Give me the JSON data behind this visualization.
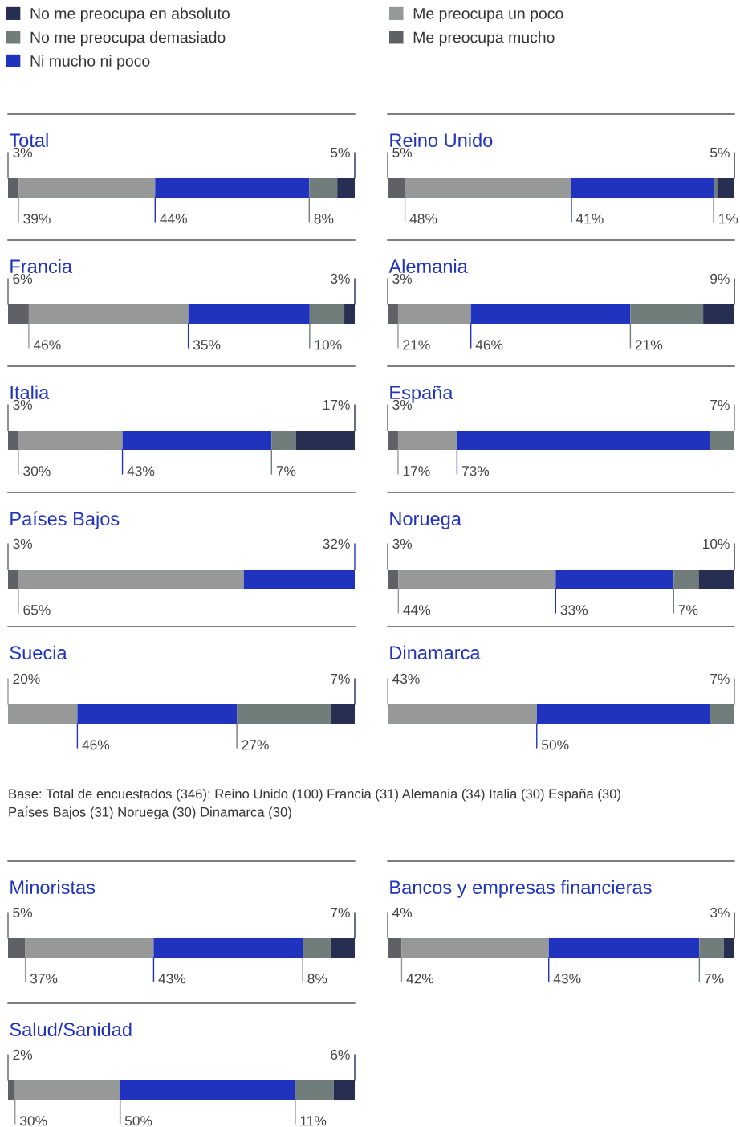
{
  "chart_data": [
    {
      "type": "bar",
      "orientation": "horizontal",
      "stacked": true,
      "legend": "top",
      "title": "Total",
      "categories": [
        null
      ],
      "series": [
        {
          "name": "Me preocupa mucho",
          "color": "#606167",
          "values": [
            3
          ],
          "value_labels": [
            "3%"
          ]
        },
        {
          "name": "Me preocupa un poco",
          "color": "#979998",
          "values": [
            39
          ],
          "value_labels": [
            "39%"
          ]
        },
        {
          "name": "Ni mucho ni poco",
          "color": "#2033be",
          "values": [
            44
          ],
          "value_labels": [
            "44%"
          ]
        },
        {
          "name": "No me preocupa demasiado",
          "color": "#717d7a",
          "values": [
            8
          ],
          "value_labels": [
            "8%"
          ]
        },
        {
          "name": "No me preocupa en absoluto",
          "color": "#262e52",
          "values": [
            5
          ],
          "value_labels": [
            "5%"
          ]
        }
      ]
    },
    {
      "type": "bar",
      "orientation": "horizontal",
      "stacked": true,
      "title": "Reino Unido",
      "categories": [
        null
      ],
      "series": [
        {
          "color": "#606167",
          "values": [
            5
          ],
          "value_labels": [
            "5%"
          ]
        },
        {
          "color": "#979998",
          "values": [
            48
          ],
          "value_labels": [
            "48%"
          ]
        },
        {
          "color": "#2033be",
          "values": [
            41
          ],
          "value_labels": [
            "41%"
          ]
        },
        {
          "color": "#717d7a",
          "values": [
            1
          ],
          "value_labels": [
            "1%"
          ]
        },
        {
          "color": "#262e52",
          "values": [
            5
          ],
          "value_labels": [
            "5%"
          ]
        }
      ]
    },
    {
      "type": "bar",
      "orientation": "horizontal",
      "stacked": true,
      "title": "Francia",
      "categories": [
        null
      ],
      "series": [
        {
          "color": "#606167",
          "values": [
            6
          ],
          "value_labels": [
            "6%"
          ]
        },
        {
          "color": "#979998",
          "values": [
            46
          ],
          "value_labels": [
            "46%"
          ]
        },
        {
          "color": "#2033be",
          "values": [
            35
          ],
          "value_labels": [
            "35%"
          ]
        },
        {
          "color": "#717d7a",
          "values": [
            10
          ],
          "value_labels": [
            "10%"
          ]
        },
        {
          "color": "#262e52",
          "values": [
            3
          ],
          "value_labels": [
            "3%"
          ]
        }
      ]
    },
    {
      "type": "bar",
      "orientation": "horizontal",
      "stacked": true,
      "title": "Alemania",
      "categories": [
        null
      ],
      "series": [
        {
          "color": "#606167",
          "values": [
            3
          ],
          "value_labels": [
            "3%"
          ]
        },
        {
          "color": "#979998",
          "values": [
            21
          ],
          "value_labels": [
            "21%"
          ]
        },
        {
          "color": "#2033be",
          "values": [
            46
          ],
          "value_labels": [
            "46%"
          ]
        },
        {
          "color": "#717d7a",
          "values": [
            21
          ],
          "value_labels": [
            "21%"
          ]
        },
        {
          "color": "#262e52",
          "values": [
            9
          ],
          "value_labels": [
            "9%"
          ]
        }
      ]
    },
    {
      "type": "bar",
      "orientation": "horizontal",
      "stacked": true,
      "title": "Italia",
      "categories": [
        null
      ],
      "series": [
        {
          "color": "#606167",
          "values": [
            3
          ],
          "value_labels": [
            "3%"
          ]
        },
        {
          "color": "#979998",
          "values": [
            30
          ],
          "value_labels": [
            "30%"
          ]
        },
        {
          "color": "#2033be",
          "values": [
            43
          ],
          "value_labels": [
            "43%"
          ]
        },
        {
          "color": "#717d7a",
          "values": [
            7
          ],
          "value_labels": [
            "7%"
          ]
        },
        {
          "color": "#262e52",
          "values": [
            17
          ],
          "value_labels": [
            "17%"
          ]
        }
      ]
    },
    {
      "type": "bar",
      "orientation": "horizontal",
      "stacked": true,
      "title": "España",
      "categories": [
        null
      ],
      "series": [
        {
          "color": "#606167",
          "values": [
            3
          ],
          "value_labels": [
            "3%"
          ]
        },
        {
          "color": "#979998",
          "values": [
            17
          ],
          "value_labels": [
            "17%"
          ]
        },
        {
          "color": "#2033be",
          "values": [
            73
          ],
          "value_labels": [
            "73%"
          ]
        },
        {
          "color": "#717d7a",
          "values": [
            7
          ],
          "value_labels": [
            "7%"
          ]
        }
      ]
    },
    {
      "type": "bar",
      "orientation": "horizontal",
      "stacked": true,
      "title": "Países Bajos",
      "categories": [
        null
      ],
      "series": [
        {
          "color": "#606167",
          "values": [
            3
          ],
          "value_labels": [
            "3%"
          ]
        },
        {
          "color": "#979998",
          "values": [
            65
          ],
          "value_labels": [
            "65%"
          ]
        },
        {
          "color": "#2033be",
          "values": [
            32
          ],
          "value_labels": [
            "32%"
          ]
        }
      ]
    },
    {
      "type": "bar",
      "orientation": "horizontal",
      "stacked": true,
      "title": "Noruega",
      "categories": [
        null
      ],
      "series": [
        {
          "color": "#606167",
          "values": [
            3
          ],
          "value_labels": [
            "3%"
          ]
        },
        {
          "color": "#979998",
          "values": [
            44
          ],
          "value_labels": [
            "44%"
          ]
        },
        {
          "color": "#2033be",
          "values": [
            33
          ],
          "value_labels": [
            "33%"
          ]
        },
        {
          "color": "#717d7a",
          "values": [
            7
          ],
          "value_labels": [
            "7%"
          ]
        },
        {
          "color": "#262e52",
          "values": [
            10
          ],
          "value_labels": [
            "10%"
          ]
        }
      ]
    },
    {
      "type": "bar",
      "orientation": "horizontal",
      "stacked": true,
      "title": "Suecia",
      "categories": [
        null
      ],
      "series": [
        {
          "color": "#979998",
          "values": [
            20
          ],
          "value_labels": [
            "20%"
          ]
        },
        {
          "color": "#2033be",
          "values": [
            46
          ],
          "value_labels": [
            "46%"
          ]
        },
        {
          "color": "#717d7a",
          "values": [
            27
          ],
          "value_labels": [
            "27%"
          ]
        },
        {
          "color": "#262e52",
          "values": [
            7
          ],
          "value_labels": [
            "7%"
          ]
        }
      ]
    },
    {
      "type": "bar",
      "orientation": "horizontal",
      "stacked": true,
      "title": "Dinamarca",
      "categories": [
        null
      ],
      "annotations": [
        "Base: Total de encuestados (346): Reino Unido (100) Francia (31) Alemania (34) Italia (30) España (30)\nPaíses Bajos (31) Noruega (30) Dinamarca (30)"
      ],
      "series": [
        {
          "color": "#979998",
          "values": [
            43
          ],
          "value_labels": [
            "43%"
          ]
        },
        {
          "color": "#2033be",
          "values": [
            50
          ],
          "value_labels": [
            "50%"
          ]
        },
        {
          "color": "#717d7a",
          "values": [
            7
          ],
          "value_labels": [
            "7%"
          ]
        }
      ]
    },
    {
      "type": "bar",
      "orientation": "horizontal",
      "stacked": true,
      "title": "Minoristas",
      "categories": [
        null
      ],
      "series": [
        {
          "color": "#606167",
          "values": [
            5
          ],
          "value_labels": [
            "5%"
          ]
        },
        {
          "color": "#979998",
          "values": [
            37
          ],
          "value_labels": [
            "37%"
          ]
        },
        {
          "color": "#2033be",
          "values": [
            43
          ],
          "value_labels": [
            "43%"
          ]
        },
        {
          "color": "#717d7a",
          "values": [
            8
          ],
          "value_labels": [
            "8%"
          ]
        },
        {
          "color": "#262e52",
          "values": [
            7
          ],
          "value_labels": [
            "7%"
          ]
        }
      ]
    },
    {
      "type": "bar",
      "orientation": "horizontal",
      "stacked": true,
      "title": "Bancos y empresas financieras",
      "categories": [
        null
      ],
      "series": [
        {
          "color": "#606167",
          "values": [
            4
          ],
          "value_labels": [
            "4%"
          ]
        },
        {
          "color": "#979998",
          "values": [
            42
          ],
          "value_labels": [
            "42%"
          ]
        },
        {
          "color": "#2033be",
          "values": [
            43
          ],
          "value_labels": [
            "43%"
          ]
        },
        {
          "color": "#717d7a",
          "values": [
            7
          ],
          "value_labels": [
            "7%"
          ]
        },
        {
          "color": "#262e52",
          "values": [
            3
          ],
          "value_labels": [
            "3%"
          ]
        }
      ]
    },
    {
      "type": "bar",
      "orientation": "horizontal",
      "stacked": true,
      "title": "Salud/Sanidad",
      "categories": [
        null
      ],
      "series": [
        {
          "color": "#606167",
          "values": [
            2
          ],
          "value_labels": [
            "2%"
          ]
        },
        {
          "color": "#979998",
          "values": [
            30
          ],
          "value_labels": [
            "30%"
          ]
        },
        {
          "color": "#2033be",
          "values": [
            50
          ],
          "value_labels": [
            "50%"
          ]
        },
        {
          "color": "#717d7a",
          "values": [
            11
          ],
          "value_labels": [
            "11%"
          ]
        },
        {
          "color": "#262e52",
          "values": [
            6
          ],
          "value_labels": [
            "6%"
          ]
        }
      ]
    }
  ]
}
